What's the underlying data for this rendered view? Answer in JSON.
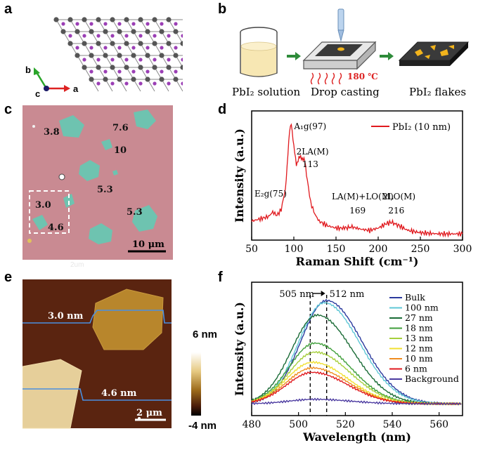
{
  "panels": {
    "a": {
      "letter": "a",
      "axes": {
        "a": "a",
        "b": "b",
        "c": "c"
      }
    },
    "b": {
      "letter": "b",
      "captions": {
        "solution": "PbI₂ solution",
        "casting": "Drop casting",
        "flakes": "PbI₂ flakes"
      },
      "temperature": "180 ℃"
    },
    "c": {
      "letter": "c",
      "thickness_labels": [
        "3.8",
        "7.6",
        "10",
        "5.3",
        "3.0",
        "5.3",
        "4.6"
      ],
      "scale_bar": "10 μm",
      "faint_text": "2um"
    },
    "d": {
      "letter": "d"
    },
    "e": {
      "letter": "e",
      "profile_labels": [
        "3.0 nm",
        "4.6 nm"
      ],
      "scale_bar": "2 μm",
      "colorbar": {
        "max": "6 nm",
        "min": "-4 nm"
      }
    },
    "f": {
      "letter": "f"
    }
  },
  "chart_data": [
    {
      "type": "line",
      "panel": "d",
      "xlabel": "Raman Shift (cm⁻¹)",
      "ylabel": "Intensity (a.u.)",
      "xlim": [
        50,
        300
      ],
      "xticks": [
        50,
        100,
        150,
        200,
        250,
        300
      ],
      "legend_position": "top-right",
      "series": [
        {
          "name": "PbI₂ (10 nm)",
          "color": "#e0191e",
          "x": [
            50,
            60,
            70,
            75,
            80,
            85,
            90,
            93,
            95,
            97,
            100,
            103,
            106,
            108,
            110,
            113,
            116,
            120,
            125,
            130,
            140,
            150,
            160,
            169,
            180,
            190,
            200,
            210,
            216,
            225,
            235,
            250,
            270,
            290,
            300
          ],
          "y": [
            0.14,
            0.16,
            0.18,
            0.22,
            0.19,
            0.24,
            0.42,
            0.72,
            0.92,
            1.0,
            0.78,
            0.64,
            0.68,
            0.7,
            0.69,
            0.66,
            0.5,
            0.3,
            0.2,
            0.14,
            0.1,
            0.08,
            0.08,
            0.09,
            0.07,
            0.06,
            0.08,
            0.12,
            0.13,
            0.1,
            0.06,
            0.04,
            0.03,
            0.03,
            0.03
          ]
        }
      ],
      "annotations": [
        "A₁g(97)",
        "2LA(M)",
        "113",
        "E₂g(75)",
        "LA(M)+LO(M)",
        "169",
        "2LO(M)",
        "216"
      ]
    },
    {
      "type": "line",
      "panel": "f",
      "xlabel": "Wavelength (nm)",
      "ylabel": "Intensity (a.u.)",
      "xlim": [
        480,
        570
      ],
      "xticks": [
        480,
        500,
        520,
        540,
        560
      ],
      "dashed_lines": [
        505,
        512
      ],
      "arrow_label": {
        "left": "505 nm",
        "right": "512 nm"
      },
      "legend_position": "top-right",
      "series": [
        {
          "name": "Bulk",
          "color": "#2b3a9e",
          "peak": 512,
          "amp": 0.92
        },
        {
          "name": "100 nm",
          "color": "#5fc7d6",
          "peak": 511,
          "amp": 0.9
        },
        {
          "name": "27 nm",
          "color": "#1a6b36",
          "peak": 508,
          "amp": 0.79
        },
        {
          "name": "18 nm",
          "color": "#3f9e3a",
          "peak": 507,
          "amp": 0.54
        },
        {
          "name": "13 nm",
          "color": "#a6cf3c",
          "peak": 507,
          "amp": 0.46
        },
        {
          "name": "12 nm",
          "color": "#f0e030",
          "peak": 506,
          "amp": 0.37
        },
        {
          "name": "10 nm",
          "color": "#ef8c1f",
          "peak": 506,
          "amp": 0.32
        },
        {
          "name": "6 nm",
          "color": "#e0191e",
          "peak": 506,
          "amp": 0.28
        },
        {
          "name": "Background",
          "color": "#4b3aa0",
          "peak": 507,
          "amp": 0.04
        }
      ]
    }
  ]
}
